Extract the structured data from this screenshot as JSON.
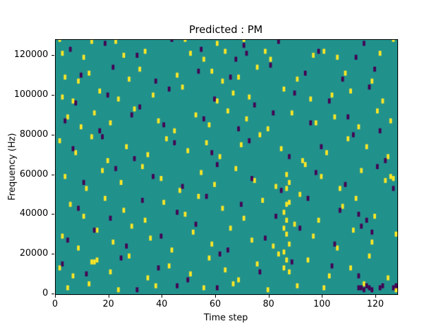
{
  "chart_data": {
    "type": "heatmap",
    "title": "Predicted : PM",
    "xlabel": "Time step",
    "ylabel": "Frequency (Hz)",
    "xlim": [
      0,
      128
    ],
    "ylim": [
      0,
      128000
    ],
    "x_ticks": [
      0,
      20,
      40,
      60,
      80,
      100,
      120
    ],
    "y_ticks": [
      0,
      20000,
      40000,
      60000,
      80000,
      100000,
      120000
    ],
    "colors": {
      "background_value": "#21918c",
      "high_value": "#fde725",
      "low_value": "#440154"
    },
    "cell_width_steps": 1,
    "cell_height_hz": 2500,
    "yellow_points": [
      [
        1,
        127000
      ],
      [
        2,
        120000
      ],
      [
        10,
        118000
      ],
      [
        13,
        126000
      ],
      [
        22,
        126000
      ],
      [
        25,
        119000
      ],
      [
        33,
        121000
      ],
      [
        48,
        127000
      ],
      [
        50,
        120000
      ],
      [
        55,
        117000
      ],
      [
        60,
        125000
      ],
      [
        63,
        121000
      ],
      [
        70,
        127000
      ],
      [
        78,
        121000
      ],
      [
        80,
        117000
      ],
      [
        96,
        119000
      ],
      [
        100,
        121000
      ],
      [
        105,
        118000
      ],
      [
        126,
        127000
      ],
      [
        121,
        120000
      ],
      [
        3,
        108000
      ],
      [
        8,
        106000
      ],
      [
        12,
        110000
      ],
      [
        27,
        107000
      ],
      [
        31,
        112000
      ],
      [
        45,
        109000
      ],
      [
        58,
        111000
      ],
      [
        62,
        106000
      ],
      [
        68,
        108000
      ],
      [
        75,
        113000
      ],
      [
        90,
        107000
      ],
      [
        108,
        110000
      ],
      [
        118,
        106000
      ],
      [
        2,
        98000
      ],
      [
        6,
        96000
      ],
      [
        16,
        101000
      ],
      [
        23,
        97000
      ],
      [
        36,
        99000
      ],
      [
        47,
        103000
      ],
      [
        60,
        96000
      ],
      [
        66,
        100000
      ],
      [
        72,
        98000
      ],
      [
        85,
        102000
      ],
      [
        95,
        97000
      ],
      [
        103,
        99000
      ],
      [
        110,
        101000
      ],
      [
        122,
        96000
      ],
      [
        4,
        88000
      ],
      [
        9,
        83000
      ],
      [
        14,
        90000
      ],
      [
        20,
        85000
      ],
      [
        29,
        92000
      ],
      [
        38,
        86000
      ],
      [
        44,
        81000
      ],
      [
        52,
        89000
      ],
      [
        57,
        84000
      ],
      [
        64,
        91000
      ],
      [
        71,
        87000
      ],
      [
        79,
        82000
      ],
      [
        88,
        90000
      ],
      [
        97,
        85000
      ],
      [
        104,
        88000
      ],
      [
        113,
        83000
      ],
      [
        120,
        91000
      ],
      [
        125,
        86000
      ],
      [
        1,
        76000
      ],
      [
        7,
        70000
      ],
      [
        13,
        78000
      ],
      [
        19,
        66000
      ],
      [
        26,
        73000
      ],
      [
        34,
        69000
      ],
      [
        41,
        77000
      ],
      [
        49,
        71000
      ],
      [
        56,
        75000
      ],
      [
        61,
        68000
      ],
      [
        69,
        74000
      ],
      [
        76,
        79000
      ],
      [
        84,
        72000
      ],
      [
        92,
        66000
      ],
      [
        101,
        70000
      ],
      [
        109,
        77000
      ],
      [
        116,
        73000
      ],
      [
        124,
        68000
      ],
      [
        3,
        58000
      ],
      [
        11,
        52000
      ],
      [
        17,
        61000
      ],
      [
        24,
        55000
      ],
      [
        32,
        63000
      ],
      [
        39,
        57000
      ],
      [
        46,
        51000
      ],
      [
        54,
        60000
      ],
      [
        59,
        54000
      ],
      [
        67,
        62000
      ],
      [
        74,
        56000
      ],
      [
        82,
        53000
      ],
      [
        86,
        59000
      ],
      [
        87,
        55000
      ],
      [
        93,
        64000
      ],
      [
        99,
        58000
      ],
      [
        106,
        52000
      ],
      [
        114,
        61000
      ],
      [
        123,
        56000
      ],
      [
        125,
        58000
      ],
      [
        126,
        57000
      ],
      [
        5,
        44000
      ],
      [
        10,
        38000
      ],
      [
        18,
        47000
      ],
      [
        25,
        41000
      ],
      [
        33,
        36000
      ],
      [
        40,
        45000
      ],
      [
        48,
        39000
      ],
      [
        53,
        48000
      ],
      [
        62,
        42000
      ],
      [
        70,
        37000
      ],
      [
        77,
        46000
      ],
      [
        85,
        40000
      ],
      [
        86,
        44000
      ],
      [
        91,
        49000
      ],
      [
        98,
        36000
      ],
      [
        107,
        43000
      ],
      [
        112,
        47000
      ],
      [
        119,
        38000
      ],
      [
        2,
        28000
      ],
      [
        8,
        22000
      ],
      [
        15,
        31000
      ],
      [
        21,
        25000
      ],
      [
        28,
        33000
      ],
      [
        35,
        27000
      ],
      [
        43,
        21000
      ],
      [
        51,
        30000
      ],
      [
        58,
        24000
      ],
      [
        65,
        32000
      ],
      [
        73,
        26000
      ],
      [
        81,
        23000
      ],
      [
        86,
        29000
      ],
      [
        89,
        34000
      ],
      [
        96,
        28000
      ],
      [
        105,
        22000
      ],
      [
        111,
        31000
      ],
      [
        118,
        25000
      ],
      [
        127,
        29000
      ],
      [
        1,
        12000
      ],
      [
        6,
        8000
      ],
      [
        13,
        15000
      ],
      [
        14,
        15000
      ],
      [
        15,
        16000
      ],
      [
        20,
        10000
      ],
      [
        27,
        18000
      ],
      [
        34,
        7000
      ],
      [
        42,
        13000
      ],
      [
        50,
        9000
      ],
      [
        57,
        17000
      ],
      [
        63,
        11000
      ],
      [
        68,
        6000
      ],
      [
        75,
        14000
      ],
      [
        83,
        19000
      ],
      [
        87,
        10000
      ],
      [
        94,
        16000
      ],
      [
        102,
        8000
      ],
      [
        110,
        12000
      ],
      [
        117,
        18000
      ],
      [
        124,
        7000
      ],
      [
        4,
        2000
      ],
      [
        12,
        4000
      ],
      [
        23,
        1000
      ],
      [
        37,
        3000
      ],
      [
        55,
        2000
      ],
      [
        66,
        4000
      ],
      [
        79,
        1000
      ],
      [
        90,
        3000
      ],
      [
        100,
        2000
      ],
      [
        115,
        4000
      ],
      [
        127,
        1000
      ],
      [
        85,
        12000
      ],
      [
        85,
        20000
      ],
      [
        86,
        16000
      ],
      [
        87,
        24000
      ],
      [
        85,
        32000
      ],
      [
        86,
        36000
      ],
      [
        87,
        45000
      ],
      [
        86,
        52000
      ]
    ],
    "purple_points": [
      [
        5,
        122000
      ],
      [
        18,
        125000
      ],
      [
        30,
        119000
      ],
      [
        43,
        127000
      ],
      [
        54,
        122000
      ],
      [
        67,
        117000
      ],
      [
        70,
        124000
      ],
      [
        71,
        120000
      ],
      [
        83,
        126000
      ],
      [
        98,
        121000
      ],
      [
        112,
        118000
      ],
      [
        115,
        125000
      ],
      [
        9,
        109000
      ],
      [
        21,
        113000
      ],
      [
        37,
        106000
      ],
      [
        53,
        111000
      ],
      [
        65,
        108000
      ],
      [
        80,
        114000
      ],
      [
        93,
        110000
      ],
      [
        107,
        107000
      ],
      [
        119,
        112000
      ],
      [
        7,
        95000
      ],
      [
        19,
        99000
      ],
      [
        31,
        93000
      ],
      [
        42,
        102000
      ],
      [
        59,
        97000
      ],
      [
        74,
        94000
      ],
      [
        89,
        100000
      ],
      [
        102,
        96000
      ],
      [
        117,
        103000
      ],
      [
        3,
        86000
      ],
      [
        16,
        81000
      ],
      [
        28,
        89000
      ],
      [
        40,
        84000
      ],
      [
        55,
        87000
      ],
      [
        68,
        82000
      ],
      [
        81,
        90000
      ],
      [
        95,
        85000
      ],
      [
        109,
        88000
      ],
      [
        121,
        81000
      ],
      [
        6,
        72000
      ],
      [
        17,
        78000
      ],
      [
        29,
        67000
      ],
      [
        44,
        75000
      ],
      [
        58,
        70000
      ],
      [
        72,
        76000
      ],
      [
        87,
        68000
      ],
      [
        99,
        73000
      ],
      [
        111,
        79000
      ],
      [
        123,
        66000
      ],
      [
        10,
        55000
      ],
      [
        22,
        62000
      ],
      [
        36,
        58000
      ],
      [
        47,
        53000
      ],
      [
        60,
        64000
      ],
      [
        73,
        57000
      ],
      [
        84,
        51000
      ],
      [
        97,
        60000
      ],
      [
        108,
        54000
      ],
      [
        120,
        63000
      ],
      [
        126,
        52000
      ],
      [
        8,
        42000
      ],
      [
        20,
        37000
      ],
      [
        32,
        46000
      ],
      [
        45,
        40000
      ],
      [
        56,
        48000
      ],
      [
        69,
        44000
      ],
      [
        82,
        38000
      ],
      [
        94,
        47000
      ],
      [
        106,
        41000
      ],
      [
        116,
        36000
      ],
      [
        113,
        39000
      ],
      [
        114,
        33000
      ],
      [
        4,
        26000
      ],
      [
        14,
        31000
      ],
      [
        26,
        23000
      ],
      [
        39,
        28000
      ],
      [
        52,
        34000
      ],
      [
        64,
        21000
      ],
      [
        78,
        27000
      ],
      [
        91,
        32000
      ],
      [
        104,
        24000
      ],
      [
        118,
        30000
      ],
      [
        2,
        14000
      ],
      [
        11,
        9000
      ],
      [
        24,
        17000
      ],
      [
        38,
        12000
      ],
      [
        49,
        6000
      ],
      [
        61,
        19000
      ],
      [
        76,
        10000
      ],
      [
        88,
        15000
      ],
      [
        103,
        13000
      ],
      [
        113,
        8000
      ],
      [
        113,
        2000
      ],
      [
        114,
        2000
      ],
      [
        115,
        1000
      ],
      [
        116,
        3000
      ],
      [
        117,
        2000
      ],
      [
        118,
        1000
      ],
      [
        121,
        2000
      ],
      [
        122,
        3000
      ],
      [
        126,
        2000
      ],
      [
        127,
        3000
      ],
      [
        60,
        2000
      ],
      [
        30,
        1000
      ],
      [
        45,
        3000
      ]
    ]
  }
}
